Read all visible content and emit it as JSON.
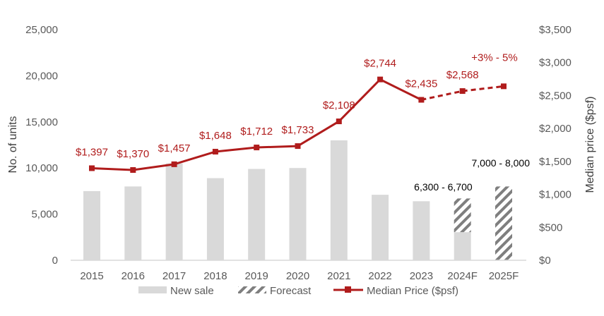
{
  "chart_data": {
    "type": "bar+line",
    "categories": [
      "2015",
      "2016",
      "2017",
      "2018",
      "2019",
      "2020",
      "2021",
      "2022",
      "2023",
      "2024F",
      "2025F"
    ],
    "series": [
      {
        "name": "New sale",
        "type": "bar",
        "axis": "left",
        "values": [
          7500,
          8000,
          10500,
          8900,
          9900,
          10000,
          13000,
          7100,
          6400,
          3050,
          0
        ]
      },
      {
        "name": "Forecast",
        "type": "bar",
        "axis": "left",
        "stacked_top": [
          null,
          null,
          null,
          null,
          null,
          null,
          null,
          null,
          null,
          6700,
          8000
        ]
      },
      {
        "name": "Median Price ($psf)",
        "type": "line",
        "axis": "right",
        "values": [
          1397,
          1370,
          1457,
          1648,
          1712,
          1733,
          2108,
          2744,
          2435,
          2568,
          2640
        ],
        "dashed_from": "2023"
      }
    ],
    "price_labels": [
      "$1,397",
      "$1,370",
      "$1,457",
      "$1,648",
      "$1,712",
      "$1,733",
      "$2,108",
      "$2,744",
      "$2,435",
      "$2,568",
      "+3% - 5%"
    ],
    "bar_annotations": {
      "2024F": "6,300 - 6,700",
      "2025F": "7,000 - 8,000"
    },
    "ylabel": "No. of units",
    "y2label": "Median price ($psf)",
    "ylim": [
      0,
      25000
    ],
    "y2lim": [
      0,
      3500
    ],
    "yticks": [
      "0",
      "5,000",
      "10,000",
      "15,000",
      "20,000",
      "25,000"
    ],
    "y2ticks": [
      "$0",
      "$500",
      "$1,000",
      "$1,500",
      "$2,000",
      "$2,500",
      "$3,000",
      "$3,500"
    ],
    "legend_position": "bottom",
    "legend": [
      "New sale",
      "Forecast",
      "Median Price ($psf)"
    ],
    "colors": {
      "bar": "#d9d9d9",
      "hatch": "#7f7f7f",
      "line": "#b01c1c"
    }
  }
}
